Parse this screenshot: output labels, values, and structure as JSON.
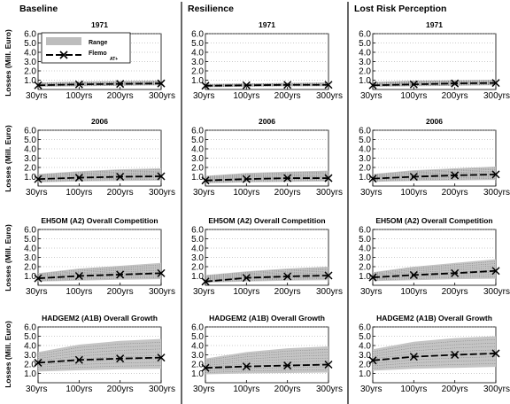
{
  "figure": {
    "columns": [
      "Baseline",
      "Resilience",
      "Lost Risk Perception"
    ],
    "ylabel": "Losses (Mill. Euro)",
    "legend": {
      "range_label": "Range",
      "line_label": "Flemo",
      "line_label_sub": "AT+"
    }
  },
  "chart_data": [
    {
      "type": "line",
      "column": "Baseline",
      "title": "1971",
      "x": [
        "30yrs",
        "100yrs",
        "200yrs",
        "300yrs"
      ],
      "yticks": [
        "6.0",
        "5.0",
        "4.0",
        "3.0",
        "2.0",
        "1.0"
      ],
      "ylim": [
        0,
        6
      ],
      "series": [
        {
          "values": [
            0.45,
            0.55,
            0.6,
            0.65
          ]
        }
      ],
      "range": {
        "low": [
          0.3,
          0.35,
          0.4,
          0.45
        ],
        "high": [
          0.75,
          0.85,
          0.9,
          0.95
        ]
      }
    },
    {
      "type": "line",
      "column": "Resilience",
      "title": "1971",
      "x": [
        "30yrs",
        "100yrs",
        "200yrs",
        "300yrs"
      ],
      "yticks": [
        "6.0",
        "5.0",
        "4.0",
        "3.0",
        "2.0",
        "1.0"
      ],
      "ylim": [
        0,
        6
      ],
      "series": [
        {
          "values": [
            0.4,
            0.45,
            0.5,
            0.5
          ]
        }
      ],
      "range": {
        "low": [
          0.25,
          0.3,
          0.35,
          0.35
        ],
        "high": [
          0.6,
          0.65,
          0.7,
          0.75
        ]
      }
    },
    {
      "type": "line",
      "column": "Lost Risk Perception",
      "title": "1971",
      "x": [
        "30yrs",
        "100yrs",
        "200yrs",
        "300yrs"
      ],
      "yticks": [
        "6.0",
        "5.0",
        "4.0",
        "3.0",
        "2.0",
        "1.0"
      ],
      "ylim": [
        0,
        6
      ],
      "series": [
        {
          "values": [
            0.45,
            0.55,
            0.65,
            0.7
          ]
        }
      ],
      "range": {
        "low": [
          0.3,
          0.35,
          0.4,
          0.45
        ],
        "high": [
          0.8,
          0.95,
          1.0,
          1.05
        ]
      }
    },
    {
      "type": "line",
      "column": "Baseline",
      "title": "2006",
      "x": [
        "30yrs",
        "100yrs",
        "200yrs",
        "300yrs"
      ],
      "yticks": [
        "6.0",
        "5.0",
        "4.0",
        "3.0",
        "2.0",
        "1.0"
      ],
      "ylim": [
        0,
        6
      ],
      "series": [
        {
          "values": [
            0.75,
            0.9,
            1.0,
            1.05
          ]
        }
      ],
      "range": {
        "low": [
          0.4,
          0.5,
          0.55,
          0.6
        ],
        "high": [
          1.3,
          1.6,
          1.8,
          1.9
        ]
      }
    },
    {
      "type": "line",
      "column": "Resilience",
      "title": "2006",
      "x": [
        "30yrs",
        "100yrs",
        "200yrs",
        "300yrs"
      ],
      "yticks": [
        "6.0",
        "5.0",
        "4.0",
        "3.0",
        "2.0",
        "1.0"
      ],
      "ylim": [
        0,
        6
      ],
      "series": [
        {
          "values": [
            0.6,
            0.75,
            0.85,
            0.85
          ]
        }
      ],
      "range": {
        "low": [
          0.3,
          0.4,
          0.45,
          0.5
        ],
        "high": [
          1.1,
          1.4,
          1.55,
          1.65
        ]
      }
    },
    {
      "type": "line",
      "column": "Lost Risk Perception",
      "title": "2006",
      "x": [
        "30yrs",
        "100yrs",
        "200yrs",
        "300yrs"
      ],
      "yticks": [
        "6.0",
        "5.0",
        "4.0",
        "3.0",
        "2.0",
        "1.0"
      ],
      "ylim": [
        0,
        6
      ],
      "series": [
        {
          "values": [
            0.8,
            1.0,
            1.15,
            1.25
          ]
        }
      ],
      "range": {
        "low": [
          0.45,
          0.55,
          0.6,
          0.65
        ],
        "high": [
          1.3,
          1.7,
          1.9,
          2.1
        ]
      }
    },
    {
      "type": "line",
      "column": "Baseline",
      "title": "EH5OM (A2) Overall Competition",
      "x": [
        "30yrs",
        "100yrs",
        "200yrs",
        "300yrs"
      ],
      "yticks": [
        "6.0",
        "5.0",
        "4.0",
        "3.0",
        "2.0",
        "1.0"
      ],
      "ylim": [
        0,
        6
      ],
      "series": [
        {
          "values": [
            0.75,
            1.0,
            1.15,
            1.3
          ]
        }
      ],
      "range": {
        "low": [
          0.4,
          0.5,
          0.6,
          0.65
        ],
        "high": [
          1.3,
          1.8,
          2.1,
          2.4
        ]
      }
    },
    {
      "type": "line",
      "column": "Resilience",
      "title": "EH5OM (A2) Overall Competition",
      "x": [
        "30yrs",
        "100yrs",
        "200yrs",
        "300yrs"
      ],
      "yticks": [
        "6.0",
        "5.0",
        "4.0",
        "3.0",
        "2.0",
        "1.0"
      ],
      "ylim": [
        0,
        6
      ],
      "series": [
        {
          "values": [
            0.4,
            0.8,
            0.95,
            1.05
          ]
        }
      ],
      "range": {
        "low": [
          0.3,
          0.4,
          0.5,
          0.55
        ],
        "high": [
          1.1,
          1.5,
          1.8,
          2.0
        ]
      }
    },
    {
      "type": "line",
      "column": "Lost Risk Perception",
      "title": "EH5OM (A2) Overall Competition",
      "x": [
        "30yrs",
        "100yrs",
        "200yrs",
        "300yrs"
      ],
      "yticks": [
        "6.0",
        "5.0",
        "4.0",
        "3.0",
        "2.0",
        "1.0"
      ],
      "ylim": [
        0,
        6
      ],
      "series": [
        {
          "values": [
            0.85,
            1.1,
            1.3,
            1.55
          ]
        }
      ],
      "range": {
        "low": [
          0.45,
          0.55,
          0.65,
          0.7
        ],
        "high": [
          1.4,
          2.0,
          2.4,
          2.8
        ]
      }
    },
    {
      "type": "line",
      "column": "Baseline",
      "title": "HADGEM2 (A1B) Overall Growth",
      "x": [
        "30yrs",
        "100yrs",
        "200yrs",
        "300yrs"
      ],
      "yticks": [
        "6.0",
        "5.0",
        "4.0",
        "3.0",
        "2.0",
        "1.0"
      ],
      "ylim": [
        0,
        6
      ],
      "series": [
        {
          "values": [
            2.15,
            2.45,
            2.6,
            2.7
          ]
        }
      ],
      "range": {
        "low": [
          1.2,
          1.35,
          1.45,
          1.5
        ],
        "high": [
          3.3,
          4.1,
          4.5,
          4.7
        ]
      }
    },
    {
      "type": "line",
      "column": "Resilience",
      "title": "HADGEM2 (A1B) Overall Growth",
      "x": [
        "30yrs",
        "100yrs",
        "200yrs",
        "300yrs"
      ],
      "yticks": [
        "6.0",
        "5.0",
        "4.0",
        "3.0",
        "2.0",
        "1.0"
      ],
      "ylim": [
        0,
        6
      ],
      "series": [
        {
          "values": [
            1.6,
            1.75,
            1.85,
            1.95
          ]
        }
      ],
      "range": {
        "low": [
          0.9,
          1.0,
          1.05,
          1.1
        ],
        "high": [
          2.6,
          3.3,
          3.7,
          3.9
        ]
      }
    },
    {
      "type": "line",
      "column": "Lost Risk Perception",
      "title": "HADGEM2 (A1B) Overall Growth",
      "x": [
        "30yrs",
        "100yrs",
        "200yrs",
        "300yrs"
      ],
      "yticks": [
        "6.0",
        "5.0",
        "4.0",
        "3.0",
        "2.0",
        "1.0"
      ],
      "ylim": [
        0,
        6
      ],
      "series": [
        {
          "values": [
            2.4,
            2.8,
            3.0,
            3.15
          ]
        }
      ],
      "range": {
        "low": [
          1.3,
          1.5,
          1.6,
          1.7
        ],
        "high": [
          3.6,
          4.4,
          4.8,
          5.0
        ]
      }
    }
  ]
}
